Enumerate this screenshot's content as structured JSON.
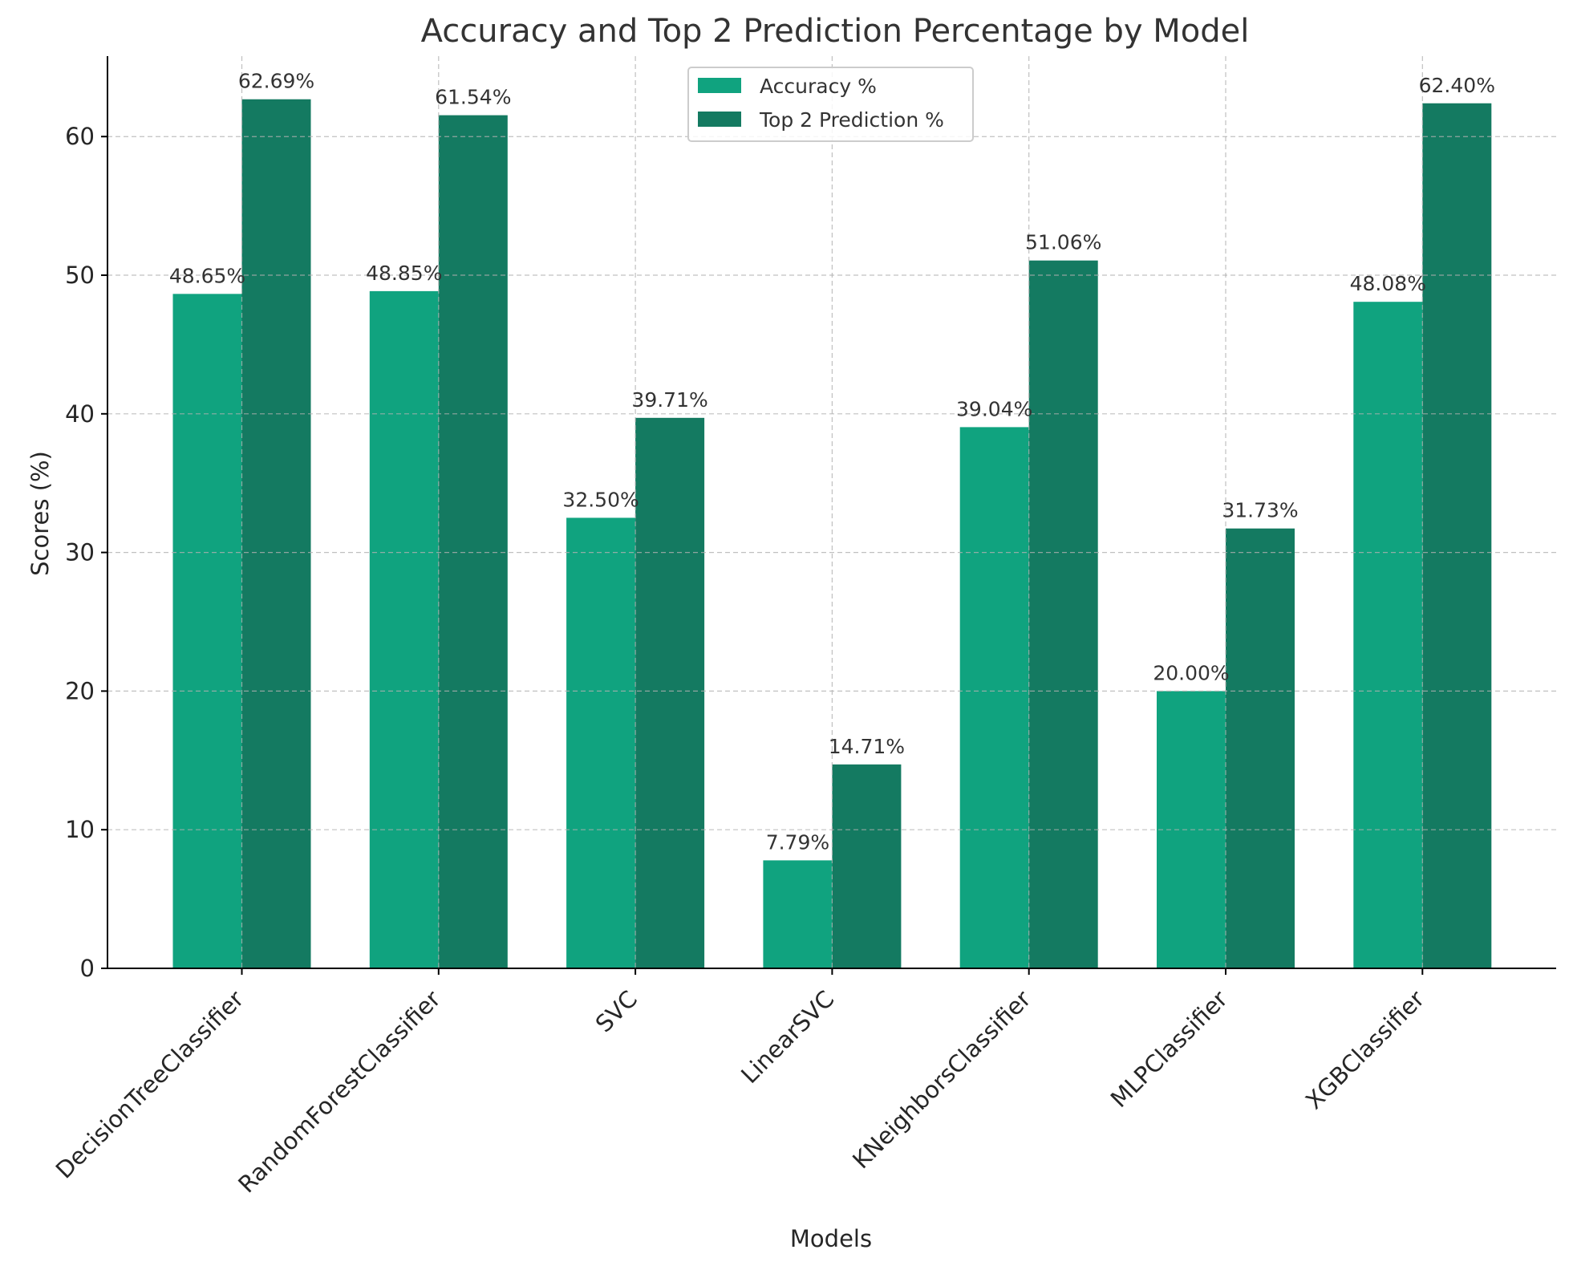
{
  "chart_data": {
    "type": "bar",
    "title": "Accuracy and Top 2 Prediction Percentage by Model",
    "xlabel": "Models",
    "ylabel": "Scores (%)",
    "categories": [
      "DecisionTreeClassifier",
      "RandomForestClassifier",
      "SVC",
      "LinearSVC",
      "KNeighborsClassifier",
      "MLPClassifier",
      "XGBClassifier"
    ],
    "series": [
      {
        "name": "Accuracy %",
        "color": "#10a37f",
        "values": [
          48.65,
          48.85,
          32.5,
          7.79,
          39.04,
          20.0,
          48.08
        ]
      },
      {
        "name": "Top 2 Prediction %",
        "color": "#147a61",
        "values": [
          62.69,
          61.54,
          39.71,
          14.71,
          51.06,
          31.73,
          62.4
        ]
      }
    ],
    "data_labels": [
      [
        "48.65%",
        "48.85%",
        "32.50%",
        "7.79%",
        "39.04%",
        "20.00%",
        "48.08%"
      ],
      [
        "62.69%",
        "61.54%",
        "39.71%",
        "14.71%",
        "51.06%",
        "31.73%",
        "62.40%"
      ]
    ],
    "ylim": [
      0,
      65.8
    ],
    "yticks": [
      0,
      10,
      20,
      30,
      40,
      50,
      60
    ],
    "grid": true,
    "legend_position": "top-center"
  }
}
